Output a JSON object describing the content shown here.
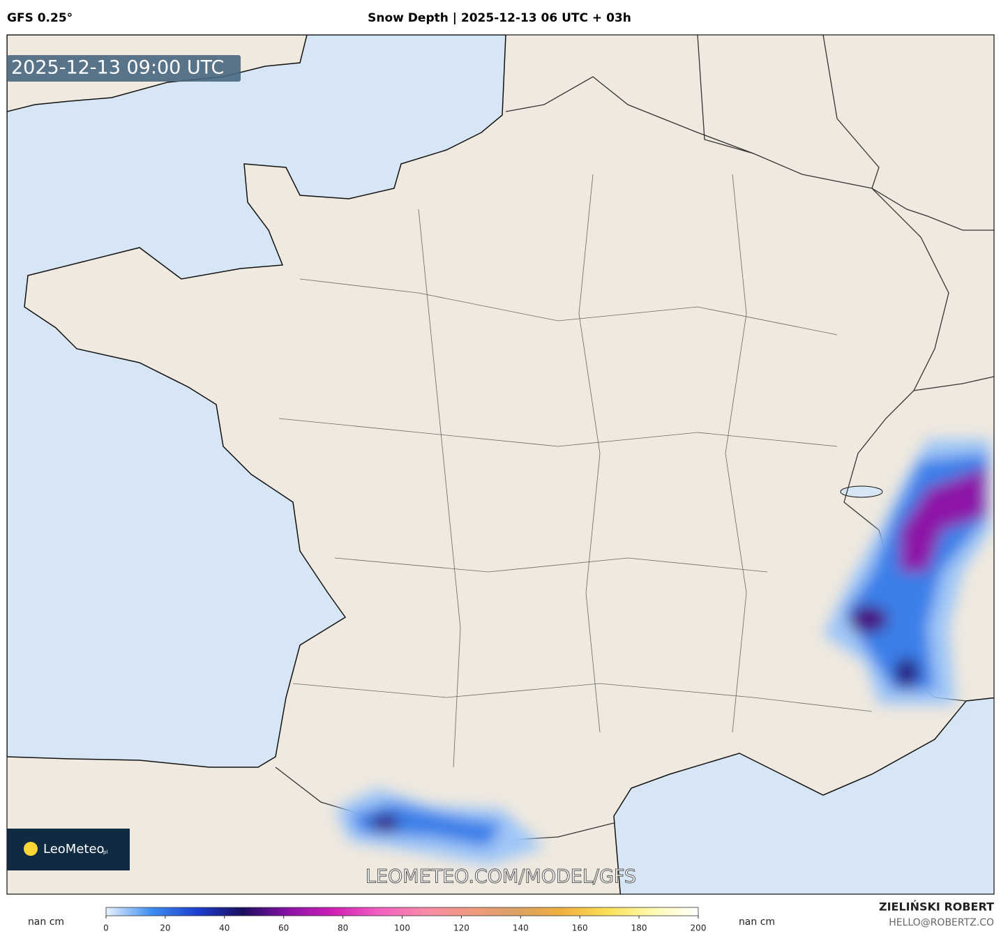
{
  "header": {
    "model": "GFS 0.25°",
    "title": "Snow Depth | 2025-12-13 06 UTC + 03h"
  },
  "map": {
    "timestamp": "2025-12-13 09:00 UTC",
    "logo": "LeoMeteo",
    "logo_suffix": "pl",
    "watermark": "LEOMETEO.COM/MODEL/GFS"
  },
  "colorbar": {
    "left_label": "nan cm",
    "right_label": "nan cm",
    "range": [
      0,
      200
    ],
    "ticks": [
      0,
      20,
      40,
      60,
      80,
      100,
      120,
      140,
      160,
      180,
      200
    ],
    "colors": [
      "#e8f2fd",
      "#3d8ef0",
      "#1d3fd0",
      "#1a0d5e",
      "#8a12a8",
      "#d01fb5",
      "#f25fc0",
      "#f88aa8",
      "#f09a80",
      "#dba063",
      "#f0b040",
      "#fbe055",
      "#fff9b0",
      "#ffffff"
    ]
  },
  "footer": {
    "author": "ZIELIŃSKI ROBERT",
    "email": "HELLO@ROBERTZ.CO"
  }
}
